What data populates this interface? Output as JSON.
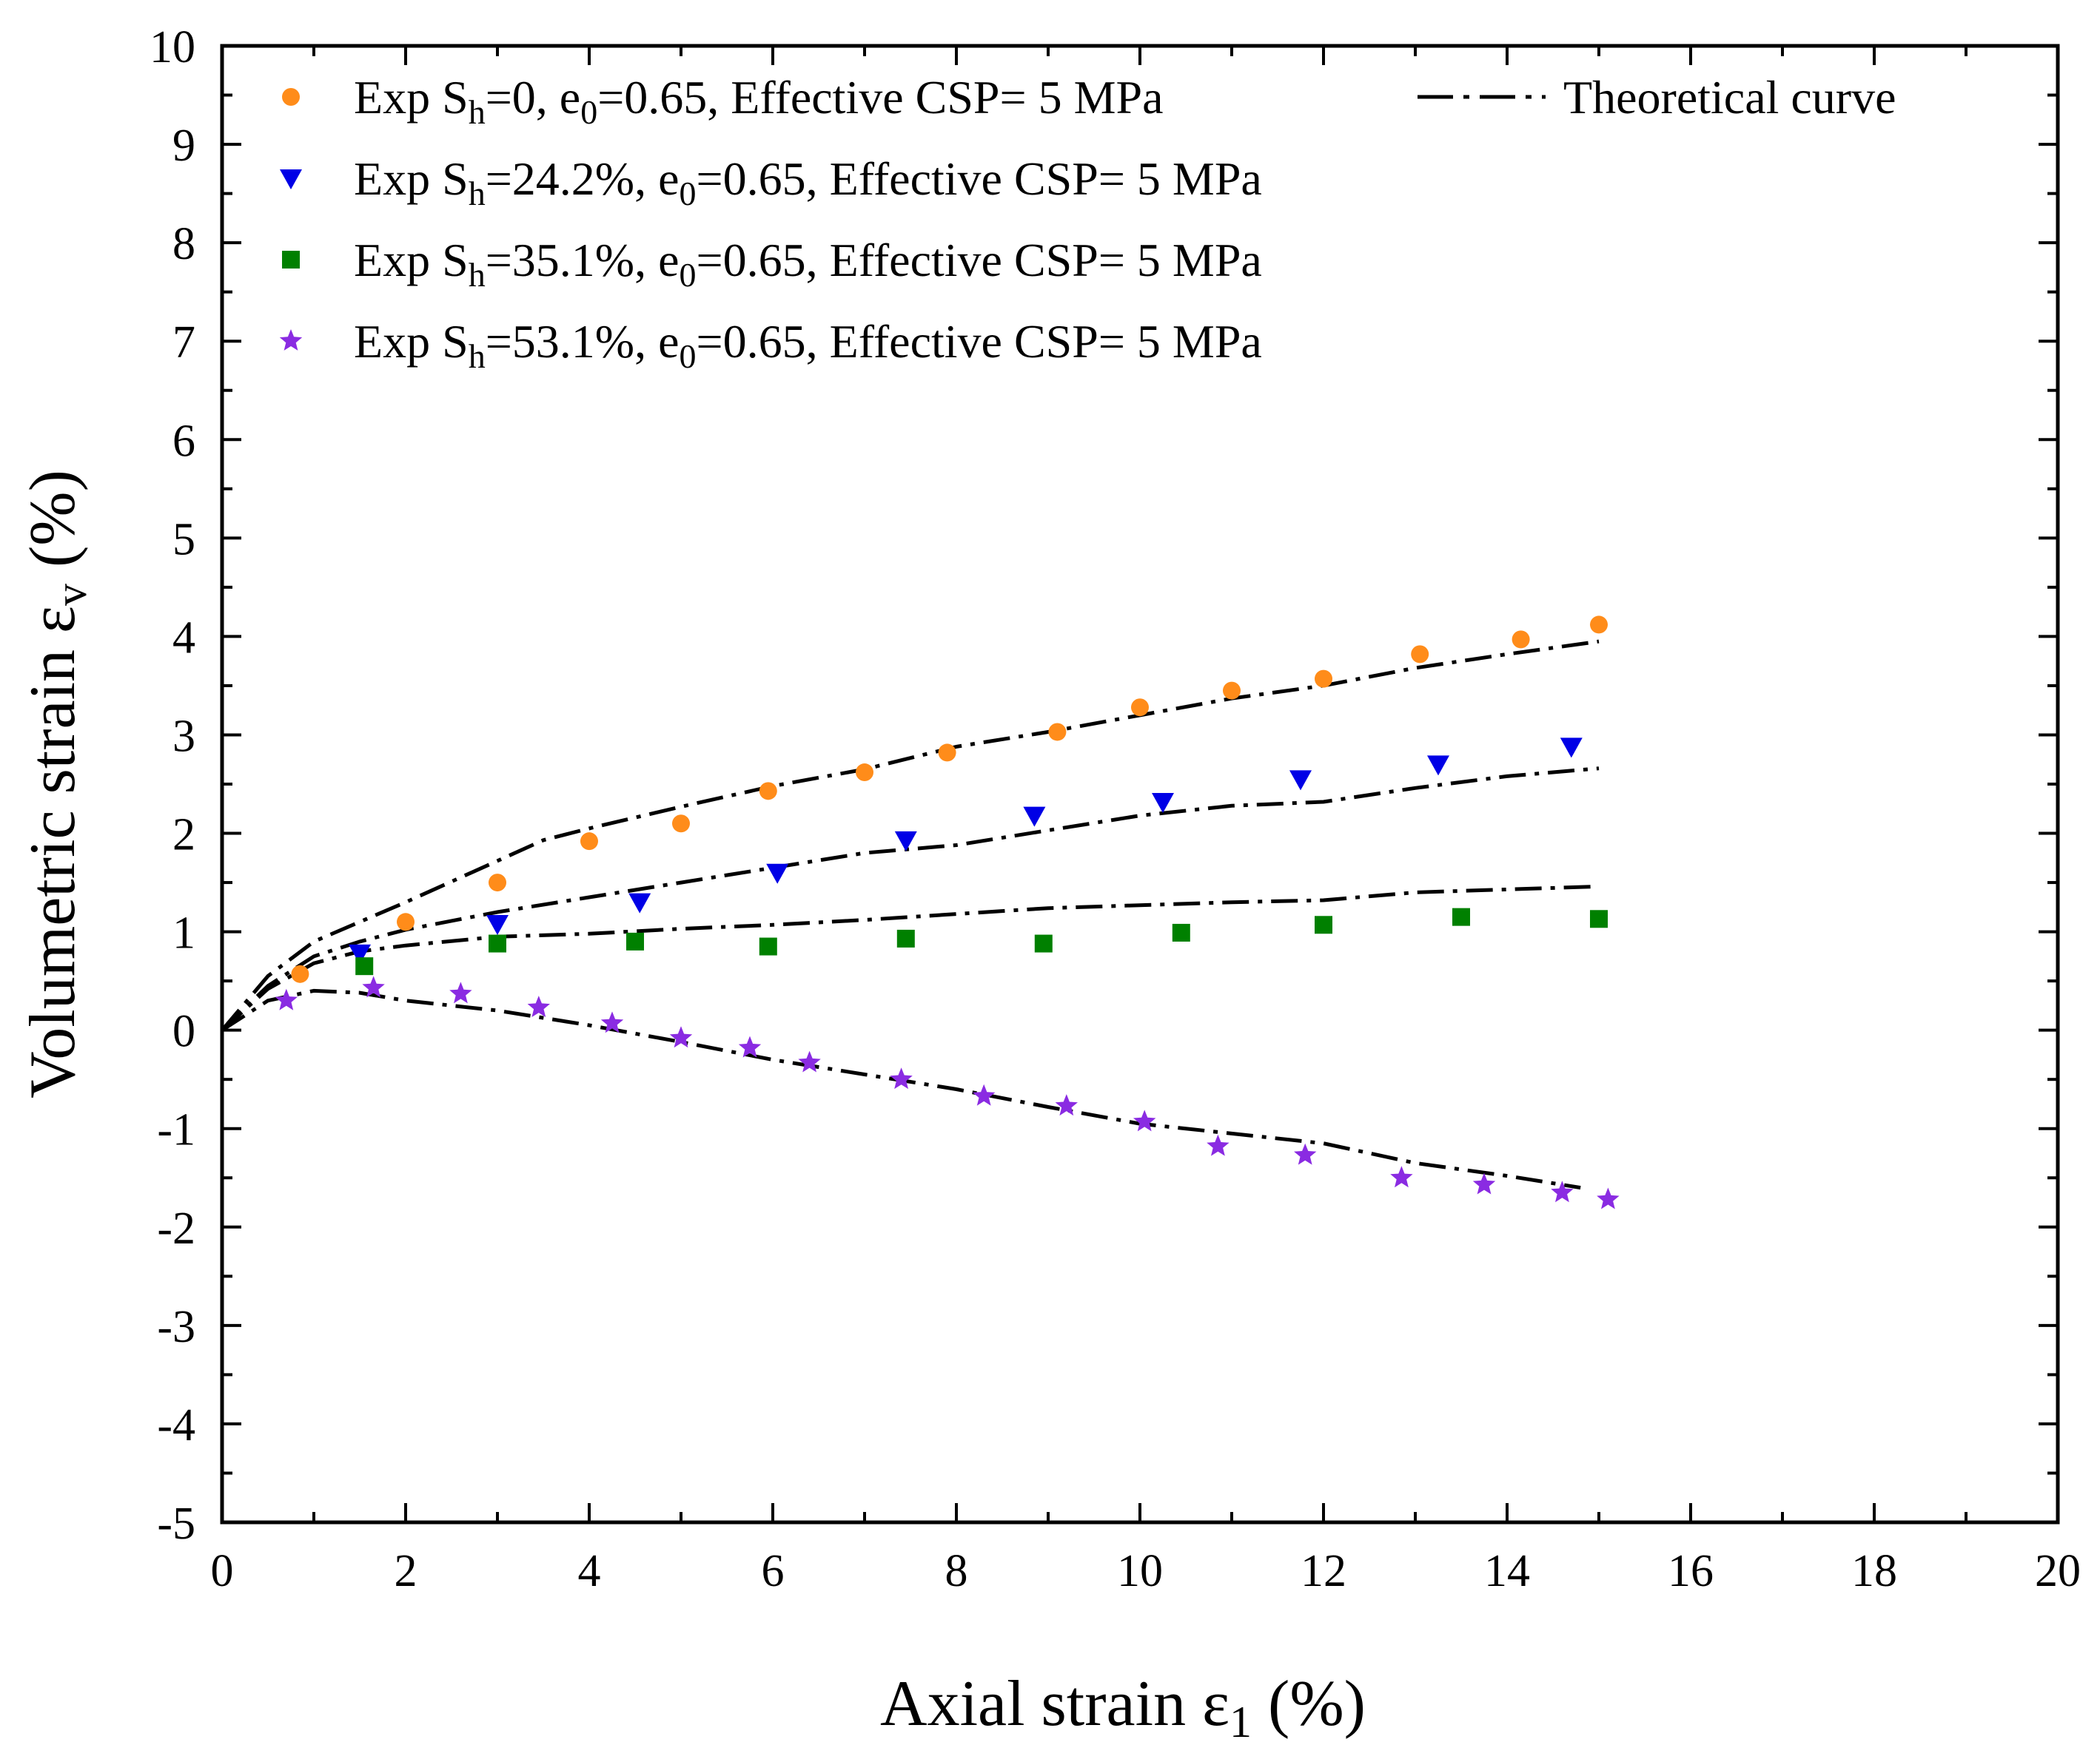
{
  "chart_data": {
    "type": "scatter",
    "xlabel": "Axial strain",
    "xlabel_symbol": "ε",
    "xlabel_sub": "1",
    "xlabel_unit": "(%)",
    "ylabel": "Volumetric strain",
    "ylabel_symbol": "ε",
    "ylabel_sub": "v",
    "ylabel_unit": "(%)",
    "xlim": [
      0,
      20
    ],
    "ylim": [
      -5,
      10
    ],
    "x_ticks": [
      0,
      2,
      4,
      6,
      8,
      10,
      12,
      14,
      16,
      18,
      20
    ],
    "y_ticks": [
      -5,
      -4,
      -3,
      -2,
      -1,
      0,
      1,
      2,
      3,
      4,
      5,
      6,
      7,
      8,
      9,
      10
    ],
    "legend_position": "top",
    "series": [
      {
        "name": "Exp Sh=0, e0=0.65, Effective CSP= 5 MPa",
        "legend": {
          "pre": "Exp S",
          "sub1": "h",
          "mid": "=0, e",
          "sub2": "0",
          "post": "=0.65, Effective CSP= 5 MPa"
        },
        "marker": "circle",
        "color": "#FF8C1A",
        "x": [
          0.85,
          2.0,
          3.0,
          4.0,
          5.0,
          5.95,
          7.0,
          7.9,
          9.1,
          10.0,
          11.0,
          12.0,
          13.05,
          14.15,
          15.0
        ],
        "y": [
          0.57,
          1.1,
          1.5,
          1.92,
          2.1,
          2.43,
          2.62,
          2.82,
          3.03,
          3.28,
          3.45,
          3.57,
          3.82,
          3.97,
          4.12
        ]
      },
      {
        "name": "Exp Sh=24.2%, e0=0.65, Effective CSP= 5 MPa",
        "legend": {
          "pre": "Exp S",
          "sub1": "h",
          "mid": "=24.2%, e",
          "sub2": "0",
          "post": "=0.65, Effective CSP= 5 MPa"
        },
        "marker": "triangle-down",
        "color": "#0000E6",
        "x": [
          1.5,
          3.0,
          4.55,
          6.05,
          7.45,
          8.85,
          10.25,
          11.75,
          13.25,
          14.7
        ],
        "y": [
          0.78,
          1.08,
          1.3,
          1.6,
          1.93,
          2.18,
          2.32,
          2.55,
          2.7,
          2.88
        ]
      },
      {
        "name": "Exp Sh=35.1%, e0=0.65, Effective CSP= 5 MPa",
        "legend": {
          "pre": "Exp S",
          "sub1": "h",
          "mid": "=35.1%, e",
          "sub2": "0",
          "post": "=0.65, Effective CSP= 5 MPa"
        },
        "marker": "square",
        "color": "#008000",
        "x": [
          1.55,
          3.0,
          4.5,
          5.95,
          7.45,
          8.95,
          10.45,
          12.0,
          13.5,
          15.0
        ],
        "y": [
          0.65,
          0.88,
          0.9,
          0.85,
          0.93,
          0.88,
          0.99,
          1.07,
          1.15,
          1.13
        ]
      },
      {
        "name": "Exp Sh=53.1%, e0=0.65, Effective CSP= 5 MPa",
        "legend": {
          "pre": "Exp S",
          "sub1": "h",
          "mid": "=53.1%, e",
          "sub2": "0",
          "post": "=0.65, Effective CSP= 5 MPa"
        },
        "marker": "star",
        "color": "#8A2BE2",
        "x": [
          0.7,
          1.65,
          2.6,
          3.45,
          4.25,
          5.0,
          5.75,
          6.4,
          7.4,
          8.3,
          9.2,
          10.05,
          10.85,
          11.8,
          12.85,
          13.75,
          14.6,
          15.1
        ],
        "y": [
          0.3,
          0.43,
          0.37,
          0.23,
          0.07,
          -0.08,
          -0.18,
          -0.33,
          -0.5,
          -0.67,
          -0.77,
          -0.93,
          -1.18,
          -1.27,
          -1.5,
          -1.57,
          -1.65,
          -1.72
        ]
      }
    ],
    "theoretical": {
      "name": "Theoretical curve",
      "color": "#000000",
      "curves": [
        {
          "x": [
            0,
            0.5,
            1.0,
            1.5,
            2.0,
            3.0,
            3.5,
            4.0,
            5.0,
            6.0,
            7.0,
            8.0,
            9.0,
            10.0,
            11.0,
            12.0,
            13.0,
            14.0,
            15.0
          ],
          "y": [
            0,
            0.55,
            0.9,
            1.1,
            1.3,
            1.72,
            1.93,
            2.05,
            2.27,
            2.48,
            2.65,
            2.88,
            3.03,
            3.2,
            3.37,
            3.5,
            3.68,
            3.82,
            3.95
          ]
        },
        {
          "x": [
            0,
            0.5,
            1.0,
            1.5,
            2.0,
            3.0,
            4.0,
            5.0,
            6.0,
            7.0,
            8.0,
            9.0,
            10.0,
            11.0,
            12.0,
            13.0,
            14.0,
            15.0
          ],
          "y": [
            0,
            0.45,
            0.75,
            0.9,
            1.02,
            1.2,
            1.35,
            1.5,
            1.65,
            1.8,
            1.88,
            2.03,
            2.18,
            2.28,
            2.32,
            2.46,
            2.58,
            2.66
          ]
        },
        {
          "x": [
            0,
            0.5,
            1.0,
            1.5,
            2.0,
            3.0,
            4.0,
            5.0,
            6.0,
            7.0,
            8.0,
            9.0,
            10.0,
            11.0,
            12.0,
            13.0,
            14.0,
            15.0
          ],
          "y": [
            0,
            0.42,
            0.68,
            0.8,
            0.86,
            0.95,
            0.98,
            1.03,
            1.07,
            1.12,
            1.18,
            1.24,
            1.27,
            1.3,
            1.32,
            1.4,
            1.43,
            1.46
          ]
        },
        {
          "x": [
            0,
            0.5,
            1.0,
            1.5,
            2.0,
            3.0,
            4.0,
            5.0,
            6.0,
            7.0,
            8.0,
            9.0,
            10.0,
            11.0,
            12.0,
            13.0,
            14.0,
            14.8
          ],
          "y": [
            0,
            0.3,
            0.4,
            0.38,
            0.3,
            0.2,
            0.05,
            -0.12,
            -0.3,
            -0.45,
            -0.6,
            -0.78,
            -0.95,
            -1.05,
            -1.15,
            -1.35,
            -1.48,
            -1.6
          ]
        }
      ]
    }
  }
}
